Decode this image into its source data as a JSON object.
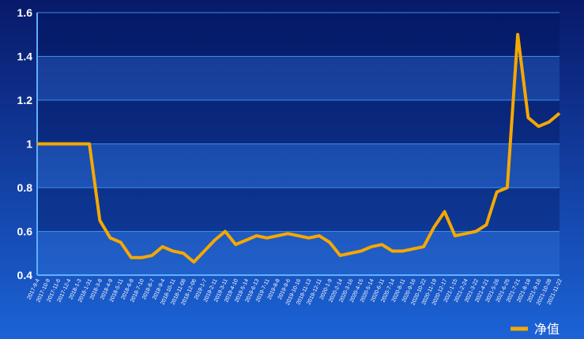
{
  "chart_data": {
    "type": "line",
    "categories": [
      "2017-9-4",
      "2017-10-9",
      "2017-11-6",
      "2017-12-4",
      "2018-1-3",
      "2018-1-31",
      "2018-3-8",
      "2018-4-9",
      "2018-5-11",
      "2018-6-8",
      "2018-7-10",
      "2018-8-7",
      "2018-9-4",
      "2018-10-11",
      "2018-11-08",
      "2018-12-06",
      "2019-1-7",
      "2019-2-11",
      "2019-3-11",
      "2019-4-10",
      "2019-5-14",
      "2019-6-13",
      "2019-7-11",
      "2019-8-8",
      "2019-9-6",
      "2019-10-16",
      "2019-11-13",
      "2019-12-11",
      "2020-1-9",
      "2020-2-14",
      "2020-3-16",
      "2020-4-15",
      "2020-5-14",
      "2020-6-11",
      "2020-7-14",
      "2020-8-11",
      "2020-9-16",
      "2020-10-22",
      "2020-11-19",
      "2020-12-17",
      "2021-1-15",
      "2021-2-24",
      "2021-3-22",
      "2021-4-21",
      "2021-5-26",
      "2021-6-25",
      "2021-7-21",
      "2021-8-18",
      "2021-9-16",
      "2021-10-28",
      "2021-11-22"
    ],
    "series": [
      {
        "name": "净值",
        "color": "#f5a800",
        "values": [
          1.0,
          1.0,
          1.0,
          1.0,
          1.0,
          1.0,
          0.65,
          0.57,
          0.55,
          0.48,
          0.48,
          0.49,
          0.53,
          0.51,
          0.5,
          0.46,
          0.51,
          0.56,
          0.6,
          0.54,
          0.56,
          0.58,
          0.57,
          0.58,
          0.59,
          0.58,
          0.57,
          0.58,
          0.55,
          0.49,
          0.5,
          0.51,
          0.53,
          0.54,
          0.51,
          0.51,
          0.52,
          0.53,
          0.62,
          0.69,
          0.58,
          0.59,
          0.6,
          0.63,
          0.78,
          0.8,
          1.5,
          1.12,
          1.08,
          1.1,
          1.14
        ]
      }
    ],
    "ylim": [
      0.4,
      1.6
    ],
    "yticks": [
      0.4,
      0.6,
      0.8,
      1,
      1.2,
      1.4,
      1.6
    ],
    "grid": true,
    "legend": "bottom-right"
  }
}
